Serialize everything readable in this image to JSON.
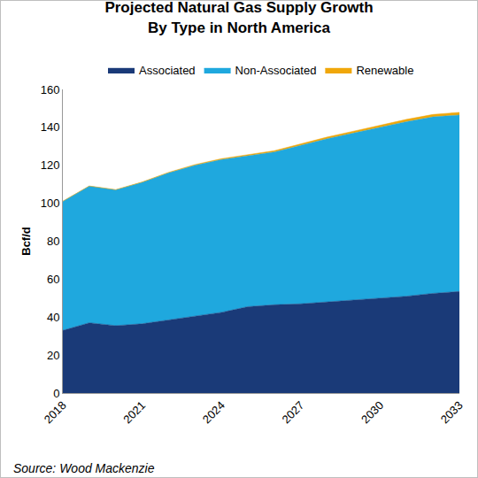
{
  "chart_data": {
    "type": "area",
    "title": "Projected Natural Gas Supply Growth\nBy Type in North America",
    "ylabel": "Bcf/d",
    "source": "Source: Wood Mackenzie",
    "x": [
      2018,
      2019,
      2020,
      2021,
      2022,
      2023,
      2024,
      2025,
      2026,
      2027,
      2028,
      2029,
      2030,
      2031,
      2032,
      2033
    ],
    "series": [
      {
        "name": "Associated",
        "color": "#1a3a78",
        "values": [
          33,
          37,
          35.5,
          36.5,
          38.5,
          40.5,
          42.5,
          45.5,
          46.5,
          47,
          48,
          49,
          50,
          51,
          52.5,
          53.5
        ]
      },
      {
        "name": "Non-Associated",
        "color": "#1fa8de",
        "values": [
          68,
          72,
          71.5,
          74.5,
          77.5,
          79.5,
          80.5,
          79.5,
          80.5,
          83.5,
          86,
          88,
          90,
          92,
          93,
          93
        ]
      },
      {
        "name": "Renewable",
        "color": "#f0a70a",
        "values": [
          0.1,
          0.1,
          0.2,
          0.2,
          0.3,
          0.4,
          0.5,
          0.6,
          0.7,
          0.8,
          0.9,
          1.0,
          1.1,
          1.2,
          1.3,
          1.4
        ]
      }
    ],
    "stacked": true,
    "xlim": [
      2018,
      2033
    ],
    "xticks": [
      2018,
      2021,
      2024,
      2027,
      2030,
      2033
    ],
    "ylim": [
      0,
      160
    ],
    "yticks": [
      0,
      20,
      40,
      60,
      80,
      100,
      120,
      140,
      160
    ],
    "grid": false,
    "legend": "top"
  }
}
